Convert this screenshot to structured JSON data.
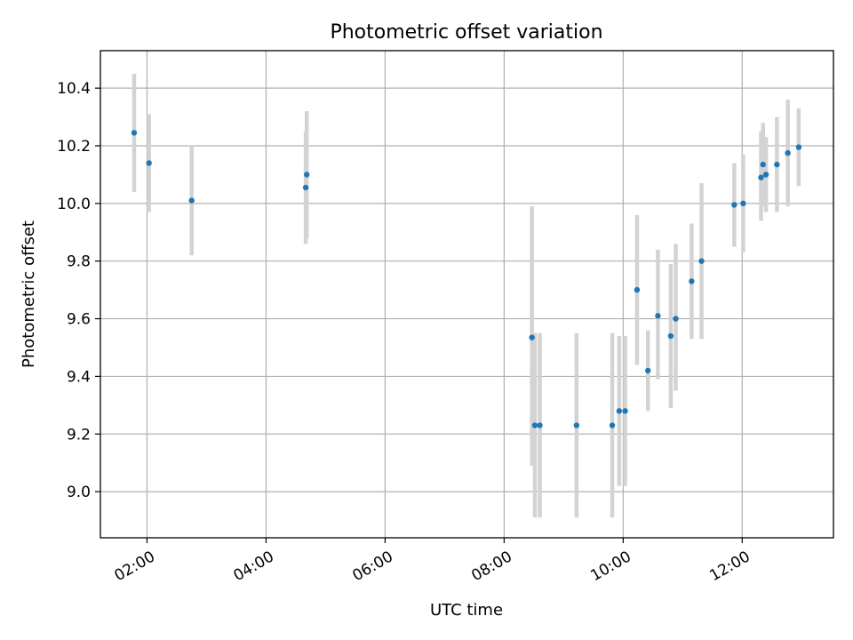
{
  "chart_data": {
    "type": "scatter",
    "title": "Photometric offset variation",
    "xlabel": "UTC time",
    "ylabel": "Photometric offset",
    "x_axis": "time",
    "xlim": [
      "01:13",
      "13:32"
    ],
    "ylim": [
      8.84,
      10.53
    ],
    "x_ticks": [
      "02:00",
      "04:00",
      "06:00",
      "08:00",
      "10:00",
      "12:00"
    ],
    "y_ticks": [
      "9.0",
      "9.2",
      "9.4",
      "9.6",
      "9.8",
      "10.0",
      "10.2",
      "10.4"
    ],
    "grid": true,
    "marker_color": "#1f77b4",
    "errorbar_color": "#d3d3d3",
    "points": [
      {
        "time": "01:47",
        "value": 10.245,
        "low": 10.04,
        "high": 10.45
      },
      {
        "time": "02:02",
        "value": 10.14,
        "low": 9.97,
        "high": 10.31
      },
      {
        "time": "02:45",
        "value": 10.01,
        "low": 9.82,
        "high": 10.2
      },
      {
        "time": "04:40",
        "value": 10.055,
        "low": 9.86,
        "high": 10.25
      },
      {
        "time": "04:41",
        "value": 10.1,
        "low": 9.88,
        "high": 10.32
      },
      {
        "time": "08:28",
        "value": 9.535,
        "low": 9.09,
        "high": 9.99
      },
      {
        "time": "08:31",
        "value": 9.23,
        "low": 8.91,
        "high": 9.55
      },
      {
        "time": "08:36",
        "value": 9.23,
        "low": 8.91,
        "high": 9.55
      },
      {
        "time": "09:13",
        "value": 9.23,
        "low": 8.91,
        "high": 9.55
      },
      {
        "time": "09:49",
        "value": 9.23,
        "low": 8.91,
        "high": 9.55
      },
      {
        "time": "09:56",
        "value": 9.28,
        "low": 9.02,
        "high": 9.54
      },
      {
        "time": "10:02",
        "value": 9.28,
        "low": 9.02,
        "high": 9.54
      },
      {
        "time": "10:14",
        "value": 9.7,
        "low": 9.44,
        "high": 9.96
      },
      {
        "time": "10:25",
        "value": 9.42,
        "low": 9.28,
        "high": 9.56
      },
      {
        "time": "10:35",
        "value": 9.61,
        "low": 9.39,
        "high": 9.84
      },
      {
        "time": "10:48",
        "value": 9.54,
        "low": 9.29,
        "high": 9.79
      },
      {
        "time": "10:53",
        "value": 9.6,
        "low": 9.35,
        "high": 9.86
      },
      {
        "time": "11:09",
        "value": 9.73,
        "low": 9.53,
        "high": 9.93
      },
      {
        "time": "11:19",
        "value": 9.8,
        "low": 9.53,
        "high": 10.07
      },
      {
        "time": "11:52",
        "value": 9.995,
        "low": 9.85,
        "high": 10.14
      },
      {
        "time": "12:01",
        "value": 10.0,
        "low": 9.83,
        "high": 10.17
      },
      {
        "time": "12:19",
        "value": 10.09,
        "low": 9.94,
        "high": 10.25
      },
      {
        "time": "12:21",
        "value": 10.135,
        "low": 9.99,
        "high": 10.28
      },
      {
        "time": "12:24",
        "value": 10.1,
        "low": 9.97,
        "high": 10.23
      },
      {
        "time": "12:35",
        "value": 10.135,
        "low": 9.97,
        "high": 10.3
      },
      {
        "time": "12:46",
        "value": 10.175,
        "low": 9.99,
        "high": 10.36
      },
      {
        "time": "12:57",
        "value": 10.195,
        "low": 10.06,
        "high": 10.33
      }
    ]
  }
}
